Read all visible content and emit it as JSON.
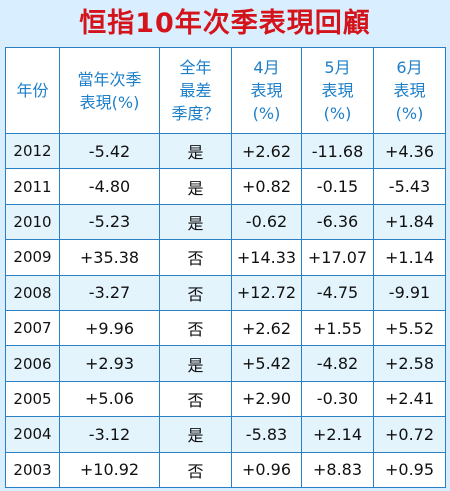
{
  "title": "恒指10年次季表現回顧",
  "headers": [
    "年份",
    "當年次季\n表現(%)",
    "全年\n最差\n季度？",
    "4月\n表現\n(%)",
    "5月\n表現\n(%)",
    "6月\n表現\n(%)"
  ],
  "rows": [
    [
      "2012",
      "-5.42",
      "是",
      "+2.62",
      "-11.68",
      "+4.36"
    ],
    [
      "2011",
      "-4.80",
      "是",
      "+0.82",
      "-0.15",
      "-5.43"
    ],
    [
      "2010",
      "-5.23",
      "是",
      "-0.62",
      "-6.36",
      "+1.84"
    ],
    [
      "2009",
      "+35.38",
      "否",
      "+14.33",
      "+17.07",
      "+1.14"
    ],
    [
      "2008",
      "-3.27",
      "否",
      "+12.72",
      "-4.75",
      "-9.91"
    ],
    [
      "2007",
      "+9.96",
      "否",
      "+2.62",
      "+1.55",
      "+5.52"
    ],
    [
      "2006",
      "+2.93",
      "是",
      "+5.42",
      "-4.82",
      "+2.58"
    ],
    [
      "2005",
      "+5.06",
      "否",
      "+2.90",
      "-0.30",
      "+2.41"
    ],
    [
      "2004",
      "-3.12",
      "是",
      "-5.83",
      "+2.14",
      "+0.72"
    ],
    [
      "2003",
      "+10.92",
      "否",
      "+0.96",
      "+8.83",
      "+0.95"
    ]
  ],
  "colors": {
    "title": "#d4141b",
    "header_text": "#1e7fc9",
    "border": "#2b7fc4",
    "background": "#d9efff",
    "row_alt": "#e4f4fd"
  }
}
